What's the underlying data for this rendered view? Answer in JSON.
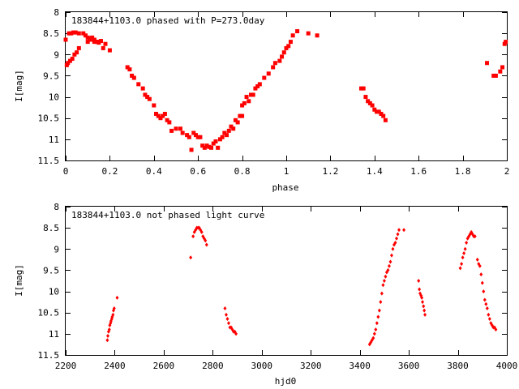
{
  "chart_data": [
    {
      "type": "scatter",
      "title": "183844+1103.0 phased with P=273.0day",
      "xlabel": "phase",
      "ylabel": "I[mag]",
      "xlim": [
        0,
        2
      ],
      "ylim": [
        11.5,
        8
      ],
      "y_reversed": true,
      "x_ticks": [
        "0",
        "0.2",
        "0.4",
        "0.6",
        "0.8",
        "1",
        "1.2",
        "1.4",
        "1.6",
        "1.8",
        "2"
      ],
      "y_ticks": [
        "8",
        "8.5",
        "9",
        "9.5",
        "10",
        "10.5",
        "11",
        "11.5"
      ],
      "color": "#ff0000",
      "marker": "square",
      "grid": false,
      "series": [
        {
          "x": [
            0.0,
            0.005,
            0.01,
            0.02,
            0.03,
            0.04,
            0.05,
            0.06,
            0.015,
            0.025,
            0.035,
            0.045,
            0.06,
            0.08,
            0.09,
            0.1,
            0.11,
            0.12,
            0.13,
            0.14,
            0.15,
            0.17,
            0.1,
            0.11,
            0.12,
            0.13,
            0.14,
            0.15,
            0.16,
            0.18,
            0.2,
            0.28,
            0.29,
            0.3,
            0.31,
            0.33,
            0.35,
            0.36,
            0.37,
            0.38,
            0.4,
            0.41,
            0.42,
            0.43,
            0.44,
            0.45,
            0.46,
            0.47,
            0.48,
            0.5,
            0.52,
            0.53,
            0.55,
            0.56,
            0.57,
            0.58,
            0.59,
            0.6,
            0.61,
            0.62,
            0.63,
            0.64,
            0.65,
            0.66,
            0.67,
            0.68,
            0.69,
            0.7,
            0.71,
            0.72,
            0.73,
            0.74,
            0.75,
            0.76,
            0.77,
            0.78,
            0.79,
            0.8,
            0.8,
            0.81,
            0.82,
            0.83,
            0.84,
            0.85,
            0.86,
            0.87,
            0.88,
            0.9,
            0.92,
            0.94,
            0.95,
            0.97,
            0.98,
            0.99,
            1.0,
            1.01,
            1.02,
            1.03,
            1.05,
            1.1,
            1.14,
            1.34,
            1.35,
            1.36,
            1.37,
            1.38,
            1.39,
            1.4,
            1.41,
            1.42,
            1.43,
            1.44,
            1.45,
            1.91,
            1.94,
            1.95,
            1.97,
            1.98,
            1.99,
            1.995
          ],
          "y": [
            8.65,
            9.25,
            9.2,
            9.15,
            9.1,
            9.0,
            8.95,
            8.85,
            8.5,
            8.5,
            8.48,
            8.48,
            8.5,
            8.5,
            8.55,
            8.6,
            8.62,
            8.65,
            8.7,
            8.7,
            8.72,
            8.85,
            8.7,
            8.65,
            8.6,
            8.65,
            8.7,
            8.7,
            8.68,
            8.75,
            8.9,
            9.3,
            9.35,
            9.5,
            9.55,
            9.7,
            9.8,
            9.95,
            10.0,
            10.05,
            10.2,
            10.4,
            10.45,
            10.5,
            10.45,
            10.4,
            10.55,
            10.6,
            10.8,
            10.75,
            10.75,
            10.85,
            10.9,
            10.95,
            11.25,
            10.85,
            10.9,
            10.95,
            10.95,
            11.15,
            11.2,
            11.15,
            11.18,
            11.2,
            11.1,
            11.05,
            11.2,
            11.0,
            10.95,
            10.85,
            10.9,
            10.8,
            10.7,
            10.75,
            10.55,
            10.6,
            10.45,
            10.45,
            10.2,
            10.15,
            10.0,
            10.1,
            9.95,
            9.95,
            9.8,
            9.75,
            9.7,
            9.55,
            9.45,
            9.3,
            9.2,
            9.15,
            9.05,
            8.95,
            8.85,
            8.8,
            8.7,
            8.55,
            8.45,
            8.5,
            8.55,
            9.8,
            9.8,
            10.0,
            10.1,
            10.15,
            10.2,
            10.3,
            10.35,
            10.35,
            10.4,
            10.45,
            10.55,
            9.2,
            9.5,
            9.5,
            9.4,
            9.3,
            8.75,
            8.7
          ]
        }
      ]
    },
    {
      "type": "scatter",
      "title": "183844+1103.0 not phased light curve",
      "xlabel": "hjd0",
      "ylabel": "I[mag]",
      "xlim": [
        2200,
        4000
      ],
      "ylim": [
        11.5,
        8
      ],
      "y_reversed": true,
      "x_ticks": [
        "2200",
        "2400",
        "2600",
        "2800",
        "3000",
        "3200",
        "3400",
        "3600",
        "3800",
        "4000"
      ],
      "y_ticks": [
        "8",
        "8.5",
        "9",
        "9.5",
        "10",
        "10.5",
        "11",
        "11.5"
      ],
      "color": "#ff0000",
      "marker": "diamond",
      "grid": false,
      "series": [
        {
          "x": [
            2370,
            2372,
            2375,
            2378,
            2380,
            2383,
            2385,
            2388,
            2390,
            2393,
            2395,
            2398,
            2410,
            2710,
            2720,
            2725,
            2730,
            2735,
            2740,
            2745,
            2750,
            2755,
            2760,
            2765,
            2770,
            2775,
            2850,
            2855,
            2860,
            2865,
            2870,
            2875,
            2880,
            2885,
            2890,
            2895,
            3440,
            3445,
            3450,
            3455,
            3460,
            3465,
            3470,
            3475,
            3480,
            3485,
            3490,
            3495,
            3500,
            3505,
            3510,
            3515,
            3520,
            3525,
            3530,
            3535,
            3540,
            3545,
            3550,
            3555,
            3560,
            3580,
            3640,
            3643,
            3646,
            3650,
            3653,
            3656,
            3660,
            3663,
            3666,
            3810,
            3815,
            3820,
            3825,
            3830,
            3835,
            3840,
            3845,
            3850,
            3855,
            3860,
            3865,
            3870,
            3880,
            3885,
            3890,
            3895,
            3900,
            3905,
            3910,
            3915,
            3920,
            3925,
            3930,
            3935,
            3940,
            3945,
            3950,
            3955
          ],
          "y": [
            11.15,
            11.05,
            10.95,
            10.9,
            10.8,
            10.75,
            10.7,
            10.65,
            10.6,
            10.55,
            10.45,
            10.4,
            10.15,
            9.2,
            8.7,
            8.6,
            8.55,
            8.5,
            8.5,
            8.5,
            8.55,
            8.6,
            8.7,
            8.75,
            8.8,
            8.9,
            10.4,
            10.55,
            10.65,
            10.75,
            10.85,
            10.85,
            10.9,
            10.95,
            10.95,
            11.0,
            11.25,
            11.2,
            11.15,
            11.1,
            11.0,
            10.9,
            10.75,
            10.6,
            10.45,
            10.25,
            10.05,
            9.85,
            9.75,
            9.65,
            9.55,
            9.5,
            9.4,
            9.3,
            9.15,
            9.0,
            8.9,
            8.85,
            8.75,
            8.65,
            8.55,
            8.55,
            9.75,
            9.95,
            10.05,
            10.1,
            10.15,
            10.25,
            10.35,
            10.45,
            10.55,
            9.45,
            9.35,
            9.2,
            9.1,
            9.0,
            8.85,
            8.75,
            8.7,
            8.65,
            8.6,
            8.65,
            8.7,
            8.7,
            9.25,
            9.35,
            9.4,
            9.6,
            9.8,
            10.0,
            10.2,
            10.3,
            10.4,
            10.55,
            10.65,
            10.75,
            10.8,
            10.85,
            10.85,
            10.9
          ]
        }
      ]
    }
  ]
}
